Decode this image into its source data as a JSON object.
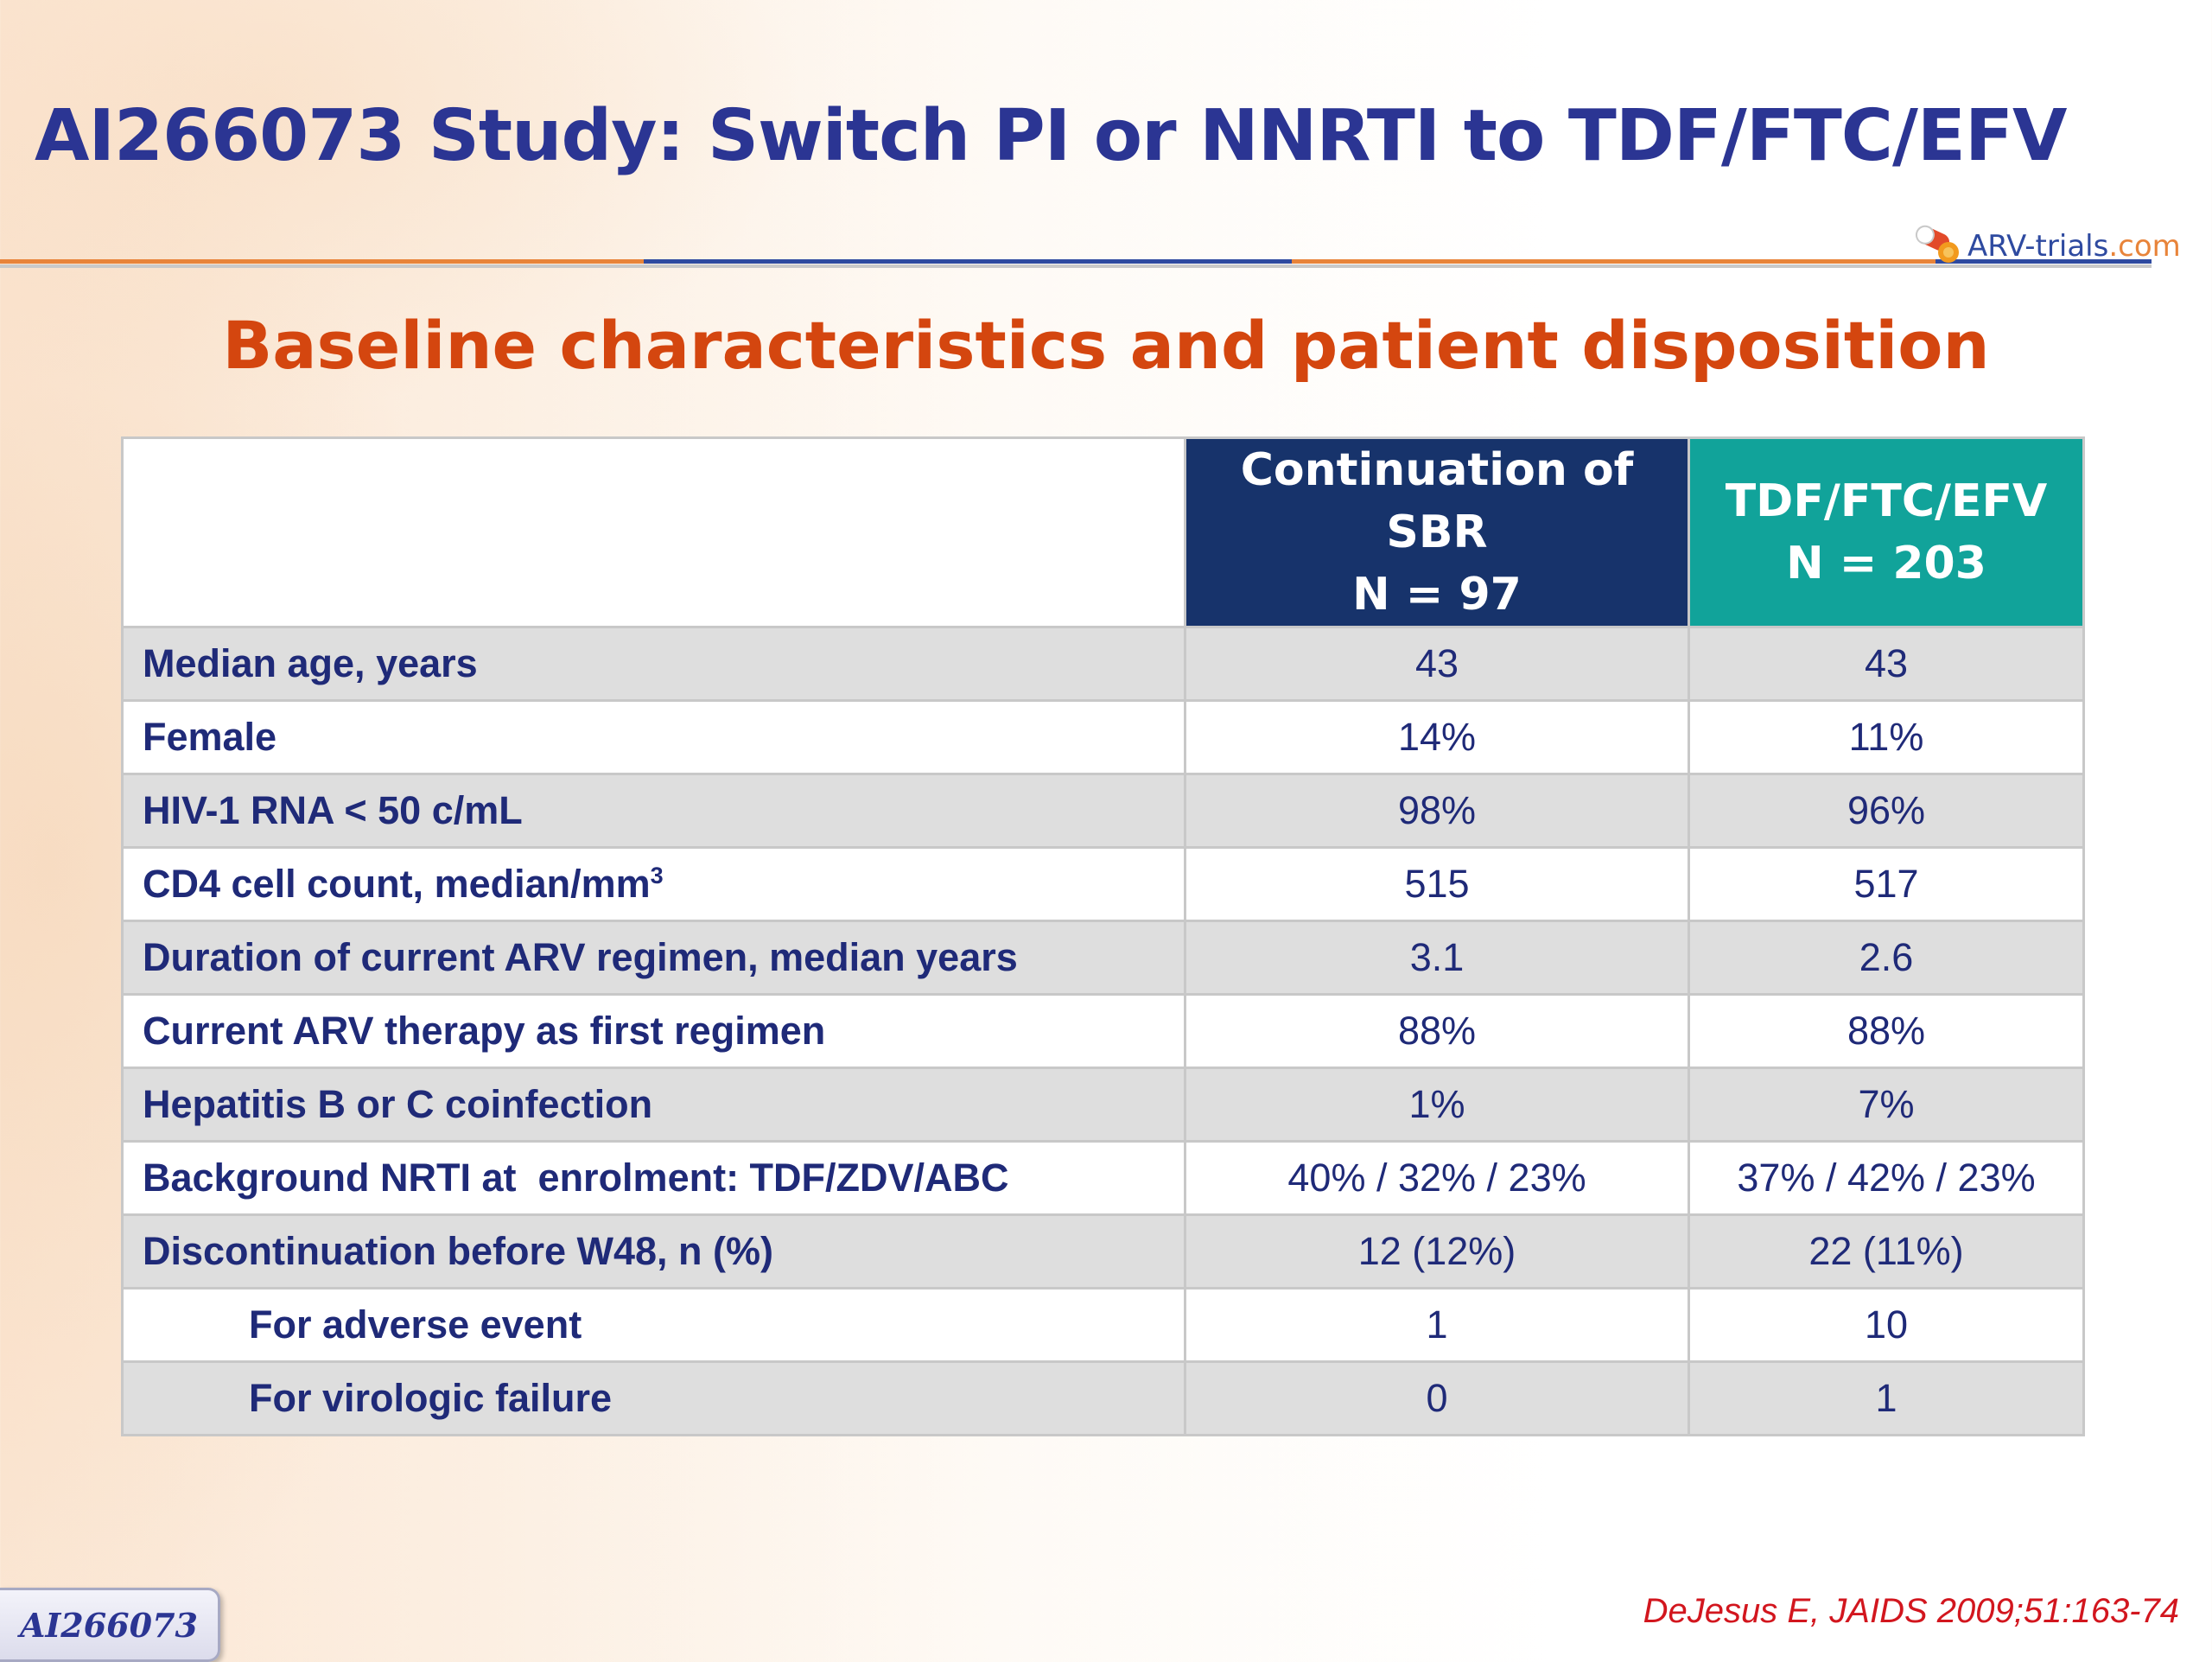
{
  "title": "AI266073 Study: Switch PI or NNRTI to TDF/FTC/EFV",
  "logo": {
    "text_main": "ARV-trials",
    "text_dot": ".",
    "text_com": "com"
  },
  "subtitle": "Baseline characteristics and patient disposition",
  "table": {
    "columns": [
      {
        "line1": "Continuation of SBR",
        "line2": "N = 97"
      },
      {
        "line1": "TDF/FTC/EFV",
        "line2": "N = 203"
      }
    ],
    "rows": [
      {
        "label": "Median age, years",
        "sbr": "43",
        "tdf": "43"
      },
      {
        "label": "Female",
        "sbr": "14%",
        "tdf": "11%"
      },
      {
        "label": "HIV-1 RNA < 50 c/mL",
        "sbr": "98%",
        "tdf": "96%"
      },
      {
        "label": "CD4 cell count, median/mm",
        "label_sup": "3",
        "sbr": "515",
        "tdf": "517"
      },
      {
        "label": "Duration of current ARV regimen, median years",
        "sbr": "3.1",
        "tdf": "2.6"
      },
      {
        "label": "Current ARV therapy as first regimen",
        "sbr": "88%",
        "tdf": "88%"
      },
      {
        "label": "Hepatitis B or C coinfection",
        "sbr": "1%",
        "tdf": "7%"
      },
      {
        "label": "Background NRTI at  enrolment: TDF/ZDV/ABC",
        "sbr": "40% / 32% / 23%",
        "tdf": "37% / 42% / 23%"
      },
      {
        "label": "Discontinuation before W48, n (%)",
        "sbr": "12 (12%)",
        "tdf": "22 (11%)"
      },
      {
        "label": "For adverse event",
        "sbr": "1",
        "tdf": "10"
      },
      {
        "label": "For virologic failure",
        "sbr": "0",
        "tdf": "1"
      }
    ]
  },
  "badge": "AI266073",
  "citation": "DeJesus E, JAIDS 2009;51:163-74",
  "colors": {
    "title": "#2b3593",
    "subtitle": "#d4460f",
    "header_sbr": "#17336b",
    "header_tdf": "#11a39a",
    "citation": "#d2161e"
  }
}
